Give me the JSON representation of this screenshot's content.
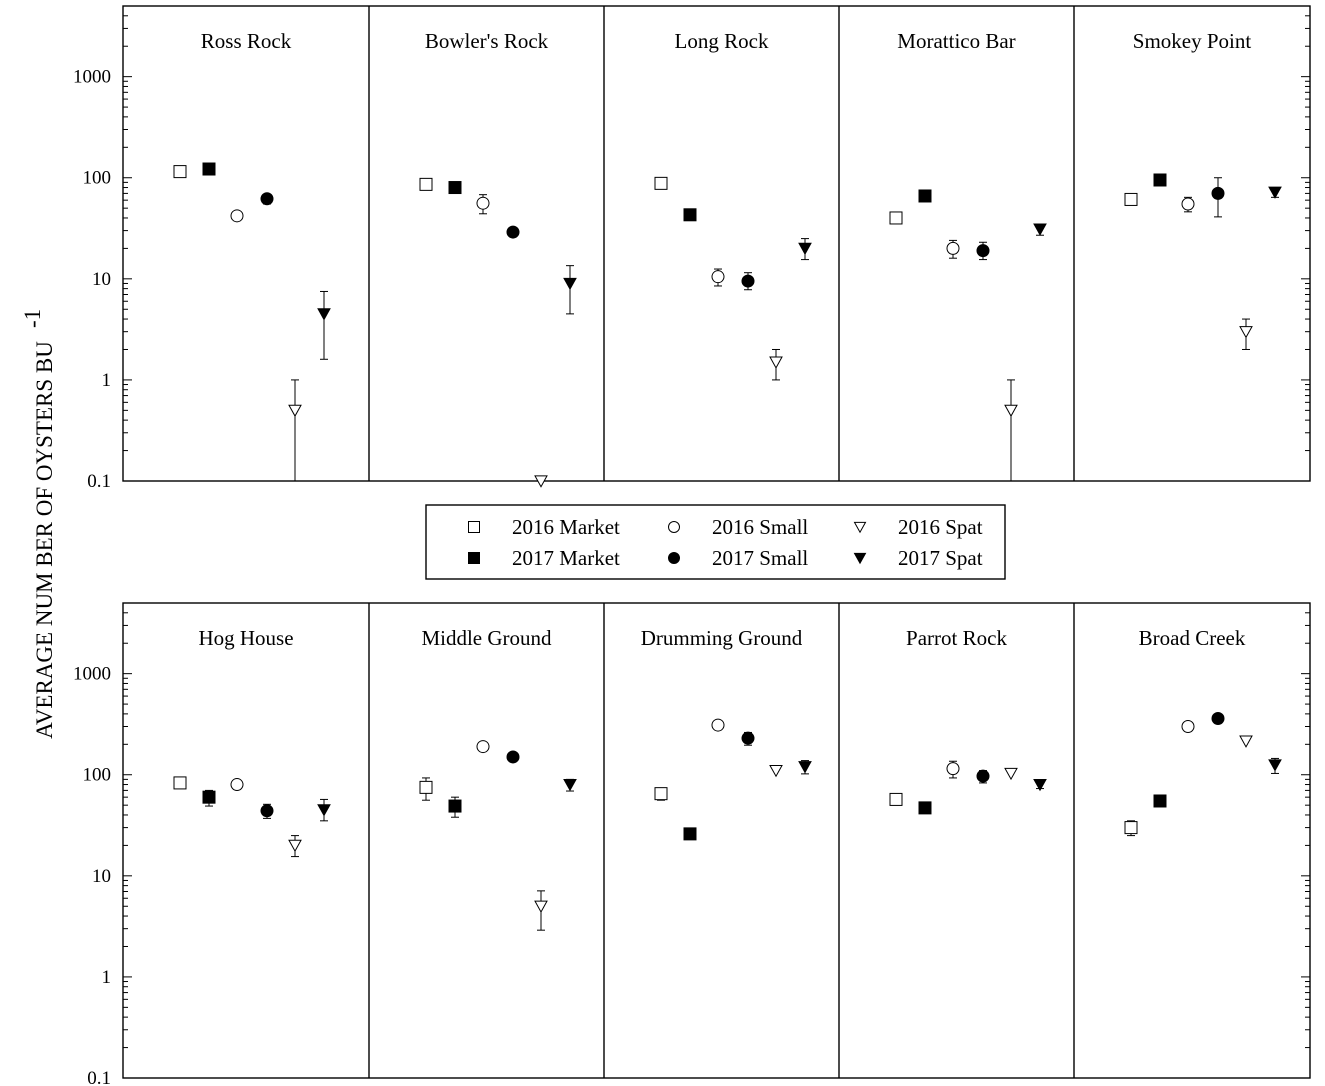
{
  "chart_data": {
    "type": "scatter",
    "ylabel": "AVERAGE NUM  BER OF OYSTERS BU",
    "ylabel_superscript": "-1",
    "yscale": "log",
    "ylim": [
      0.1,
      5000
    ],
    "yticks": [
      "0.1",
      "1",
      "10",
      "100",
      "1000"
    ],
    "ytick_values": [
      0.1,
      1,
      10,
      100,
      1000
    ],
    "grid": false,
    "legend_placement": "center, between rows",
    "series": [
      {
        "key": "m16",
        "name": "2016 Market",
        "marker": "square",
        "filled": false
      },
      {
        "key": "s16",
        "name": "2016 Small",
        "marker": "circle",
        "filled": false
      },
      {
        "key": "p16",
        "name": "2016 Spat",
        "marker": "triangle-down",
        "filled": false
      },
      {
        "key": "m17",
        "name": "2017 Market",
        "marker": "square",
        "filled": true
      },
      {
        "key": "s17",
        "name": "2017 Small",
        "marker": "circle",
        "filled": true
      },
      {
        "key": "p17",
        "name": "2017 Spat",
        "marker": "triangle-down",
        "filled": true
      }
    ],
    "x_order": [
      "m16",
      "m17",
      "s16",
      "s17",
      "p16",
      "p17"
    ],
    "rows": [
      {
        "sites": [
          {
            "name": "Ross Rock",
            "points": [
              {
                "s": "m16",
                "y": 115
              },
              {
                "s": "m17",
                "y": 122
              },
              {
                "s": "s16",
                "y": 42
              },
              {
                "s": "s17",
                "y": 62,
                "lo": 55,
                "hi": 68
              },
              {
                "s": "p16",
                "y": 0.5,
                "lo": 0.1,
                "hi": 1.0
              },
              {
                "s": "p17",
                "y": 4.5,
                "lo": 1.6,
                "hi": 7.5
              }
            ]
          },
          {
            "name": "Bowler's Rock",
            "points": [
              {
                "s": "m16",
                "y": 86,
                "lo": 77,
                "hi": 95
              },
              {
                "s": "m17",
                "y": 80
              },
              {
                "s": "s16",
                "y": 56,
                "lo": 44,
                "hi": 68
              },
              {
                "s": "s17",
                "y": 29
              },
              {
                "s": "p16",
                "y": 0.1
              },
              {
                "s": "p17",
                "y": 9,
                "lo": 4.5,
                "hi": 13.5
              }
            ]
          },
          {
            "name": "Long Rock",
            "points": [
              {
                "s": "m16",
                "y": 88
              },
              {
                "s": "m17",
                "y": 43
              },
              {
                "s": "s16",
                "y": 10.5,
                "lo": 8.5,
                "hi": 12.5
              },
              {
                "s": "s17",
                "y": 9.5,
                "lo": 7.8,
                "hi": 11.5
              },
              {
                "s": "p16",
                "y": 1.5,
                "lo": 1.0,
                "hi": 2.0
              },
              {
                "s": "p17",
                "y": 20,
                "lo": 15.5,
                "hi": 25
              }
            ]
          },
          {
            "name": "Morattico Bar",
            "points": [
              {
                "s": "m16",
                "y": 40
              },
              {
                "s": "m17",
                "y": 66,
                "lo": 59,
                "hi": 73
              },
              {
                "s": "s16",
                "y": 20,
                "lo": 16,
                "hi": 24
              },
              {
                "s": "s17",
                "y": 19,
                "lo": 15.5,
                "hi": 23
              },
              {
                "s": "p16",
                "y": 0.5,
                "lo": 0.1,
                "hi": 1.0
              },
              {
                "s": "p17",
                "y": 31,
                "lo": 27,
                "hi": 34
              }
            ]
          },
          {
            "name": "Smokey Point",
            "points": [
              {
                "s": "m16",
                "y": 61
              },
              {
                "s": "m17",
                "y": 95
              },
              {
                "s": "s16",
                "y": 55,
                "lo": 46,
                "hi": 64
              },
              {
                "s": "s17",
                "y": 70,
                "lo": 41,
                "hi": 100
              },
              {
                "s": "p16",
                "y": 3,
                "lo": 2.0,
                "hi": 4.0
              },
              {
                "s": "p17",
                "y": 72,
                "lo": 64,
                "hi": 79
              }
            ]
          }
        ]
      },
      {
        "sites": [
          {
            "name": "Hog House",
            "points": [
              {
                "s": "m16",
                "y": 83
              },
              {
                "s": "m17",
                "y": 60,
                "lo": 49,
                "hi": 70
              },
              {
                "s": "s16",
                "y": 80
              },
              {
                "s": "s17",
                "y": 44,
                "lo": 37,
                "hi": 51
              },
              {
                "s": "p16",
                "y": 20,
                "lo": 15.5,
                "hi": 25
              },
              {
                "s": "p17",
                "y": 45,
                "lo": 35,
                "hi": 57
              }
            ]
          },
          {
            "name": "Middle Ground",
            "points": [
              {
                "s": "m16",
                "y": 75,
                "lo": 56,
                "hi": 93
              },
              {
                "s": "m17",
                "y": 49,
                "lo": 38,
                "hi": 60
              },
              {
                "s": "s16",
                "y": 190,
                "lo": 172,
                "hi": 208
              },
              {
                "s": "s17",
                "y": 150
              },
              {
                "s": "p16",
                "y": 5,
                "lo": 2.9,
                "hi": 7.1
              },
              {
                "s": "p17",
                "y": 80,
                "lo": 69,
                "hi": 90
              }
            ]
          },
          {
            "name": "Drumming Ground",
            "points": [
              {
                "s": "m16",
                "y": 65,
                "lo": 56,
                "hi": 73
              },
              {
                "s": "m17",
                "y": 26
              },
              {
                "s": "s16",
                "y": 310
              },
              {
                "s": "s17",
                "y": 230,
                "lo": 196,
                "hi": 262
              },
              {
                "s": "p16",
                "y": 110
              },
              {
                "s": "p17",
                "y": 120,
                "lo": 102,
                "hi": 138
              }
            ]
          },
          {
            "name": "Parrot Rock",
            "points": [
              {
                "s": "m16",
                "y": 57
              },
              {
                "s": "m17",
                "y": 47
              },
              {
                "s": "s16",
                "y": 115,
                "lo": 93,
                "hi": 136
              },
              {
                "s": "s17",
                "y": 97,
                "lo": 83,
                "hi": 110
              },
              {
                "s": "p16",
                "y": 103
              },
              {
                "s": "p17",
                "y": 80,
                "lo": 73,
                "hi": 86
              }
            ]
          },
          {
            "name": "Broad Creek",
            "points": [
              {
                "s": "m16",
                "y": 30,
                "lo": 25,
                "hi": 35
              },
              {
                "s": "m17",
                "y": 55
              },
              {
                "s": "s16",
                "y": 300
              },
              {
                "s": "s17",
                "y": 360
              },
              {
                "s": "p16",
                "y": 215
              },
              {
                "s": "p17",
                "y": 125,
                "lo": 103,
                "hi": 145
              }
            ]
          }
        ]
      }
    ]
  }
}
